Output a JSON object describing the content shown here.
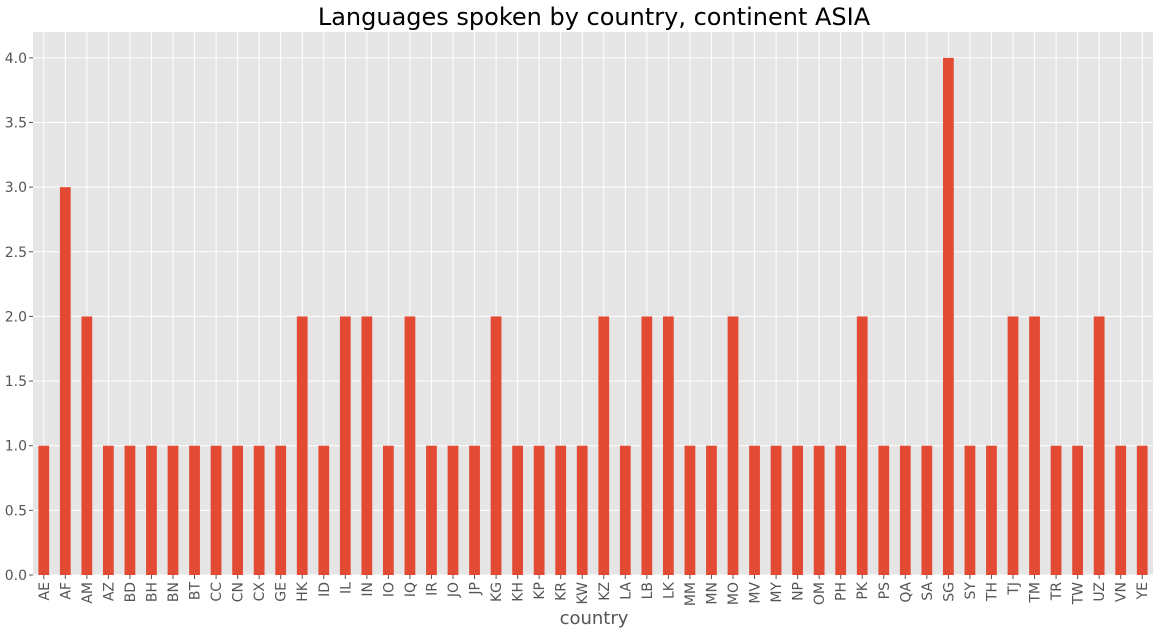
{
  "chart_data": {
    "type": "bar",
    "title": "Languages spoken by country, continent ASIA",
    "xlabel": "country",
    "ylabel": "",
    "ylim": [
      0,
      4.2
    ],
    "yticks": [
      "0.0",
      "0.5",
      "1.0",
      "1.5",
      "2.0",
      "2.5",
      "3.0",
      "3.5",
      "4.0"
    ],
    "grid": true,
    "colors": {
      "bar": "#E24A33",
      "plot_bg": "#E5E5E5",
      "grid": "#FFFFFF",
      "text": "#555555"
    },
    "categories": [
      "AE",
      "AF",
      "AM",
      "AZ",
      "BD",
      "BH",
      "BN",
      "BT",
      "CC",
      "CN",
      "CX",
      "GE",
      "HK",
      "ID",
      "IL",
      "IN",
      "IO",
      "IQ",
      "IR",
      "JO",
      "JP",
      "KG",
      "KH",
      "KP",
      "KR",
      "KW",
      "KZ",
      "LA",
      "LB",
      "LK",
      "MM",
      "MN",
      "MO",
      "MV",
      "MY",
      "NP",
      "OM",
      "PH",
      "PK",
      "PS",
      "QA",
      "SA",
      "SG",
      "SY",
      "TH",
      "TJ",
      "TM",
      "TR",
      "TW",
      "UZ",
      "VN",
      "YE"
    ],
    "values": [
      1,
      3,
      2,
      1,
      1,
      1,
      1,
      1,
      1,
      1,
      1,
      1,
      2,
      1,
      2,
      2,
      1,
      2,
      1,
      1,
      1,
      2,
      1,
      1,
      1,
      1,
      2,
      1,
      2,
      2,
      1,
      1,
      2,
      1,
      1,
      1,
      1,
      1,
      2,
      1,
      1,
      1,
      4,
      1,
      1,
      2,
      2,
      1,
      1,
      2,
      1,
      1
    ]
  }
}
